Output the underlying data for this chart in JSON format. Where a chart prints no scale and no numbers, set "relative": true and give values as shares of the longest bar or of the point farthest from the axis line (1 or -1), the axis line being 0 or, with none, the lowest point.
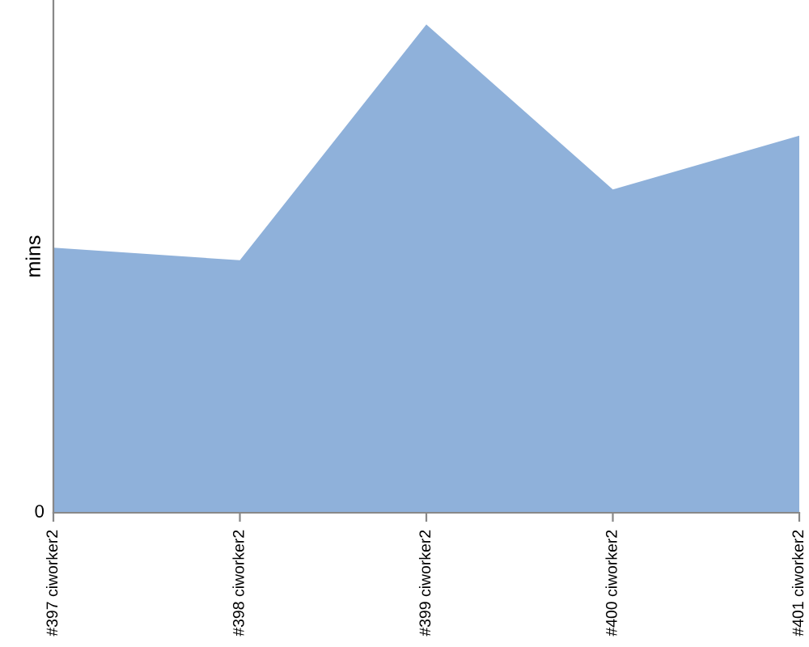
{
  "chart_data": {
    "type": "area",
    "ylabel": "mins",
    "relative": true,
    "categories": [
      "#397 ciworker2",
      "#398 ciworker2",
      "#399 ciworker2",
      "#400 ciworker2",
      "#401 ciworker2"
    ],
    "series": [
      {
        "color": "#8fb1da",
        "values": [
          0.543,
          0.517,
          1,
          0.662,
          0.772
        ]
      }
    ],
    "annotations": [
      "0"
    ],
    "grid": false,
    "legend": false
  }
}
